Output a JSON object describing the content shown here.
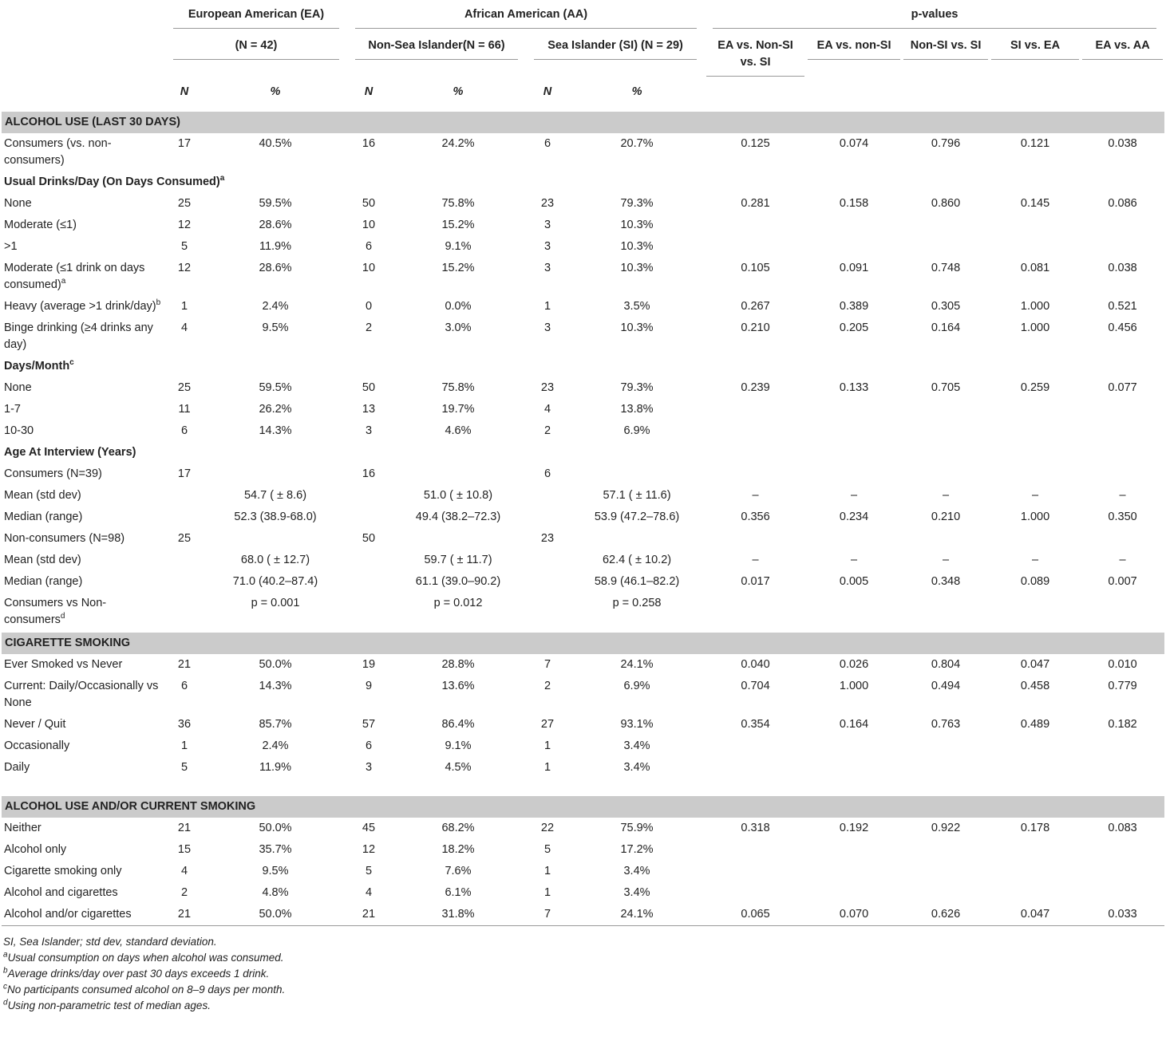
{
  "header": {
    "groups": [
      "European American (EA)",
      "African American (AA)",
      "p-values"
    ],
    "subgroups": [
      "(N = 42)",
      "Non-Sea Islander(N = 66)",
      "Sea Islander (SI) (N = 29)",
      "EA vs. Non-SI vs. SI",
      "EA vs. non-SI",
      "Non-SI vs. SI",
      "SI vs. EA",
      "EA vs. AA"
    ],
    "units": [
      "N",
      "%",
      "N",
      "%",
      "N",
      "%"
    ]
  },
  "sections": [
    {
      "title": "ALCOHOL USE (LAST 30 DAYS)",
      "rows": [
        {
          "label": "Consumers (vs. non-consumers)",
          "cells": [
            "17",
            "40.5%",
            "16",
            "24.2%",
            "6",
            "20.7%",
            "0.125",
            "0.074",
            "0.796",
            "0.121",
            "0.038"
          ]
        },
        {
          "label": "Usual Drinks/Day (On Days Consumed)",
          "sup": "a"
        },
        {
          "label": "None",
          "cells": [
            "25",
            "59.5%",
            "50",
            "75.8%",
            "23",
            "79.3%",
            "0.281",
            "0.158",
            "0.860",
            "0.145",
            "0.086"
          ]
        },
        {
          "label": "Moderate (≤1)",
          "cells": [
            "12",
            "28.6%",
            "10",
            "15.2%",
            "3",
            "10.3%",
            null,
            null,
            null,
            null,
            null
          ]
        },
        {
          "label": ">1",
          "cells": [
            "5",
            "11.9%",
            "6",
            "9.1%",
            "3",
            "10.3%",
            null,
            null,
            null,
            null,
            null
          ]
        },
        {
          "label": "Moderate (≤1 drink on days consumed)",
          "sup": "a",
          "cells": [
            "12",
            "28.6%",
            "10",
            "15.2%",
            "3",
            "10.3%",
            "0.105",
            "0.091",
            "0.748",
            "0.081",
            "0.038"
          ]
        },
        {
          "label": "Heavy (average >1 drink/day)",
          "sup": "b",
          "cells": [
            "1",
            "2.4%",
            "0",
            "0.0%",
            "1",
            "3.5%",
            "0.267",
            "0.389",
            "0.305",
            "1.000",
            "0.521"
          ]
        },
        {
          "label": "Binge drinking (≥4 drinks any day)",
          "cells": [
            "4",
            "9.5%",
            "2",
            "3.0%",
            "3",
            "10.3%",
            "0.210",
            "0.205",
            "0.164",
            "1.000",
            "0.456"
          ]
        },
        {
          "label": "Days/Month",
          "sup": "c"
        },
        {
          "label": "None",
          "cells": [
            "25",
            "59.5%",
            "50",
            "75.8%",
            "23",
            "79.3%",
            "0.239",
            "0.133",
            "0.705",
            "0.259",
            "0.077"
          ]
        },
        {
          "label": "1-7",
          "cells": [
            "11",
            "26.2%",
            "13",
            "19.7%",
            "4",
            "13.8%",
            null,
            null,
            null,
            null,
            null
          ]
        },
        {
          "label": "10-30",
          "cells": [
            "6",
            "14.3%",
            "3",
            "4.6%",
            "2",
            "6.9%",
            null,
            null,
            null,
            null,
            null
          ]
        },
        {
          "label": "Age At Interview (Years)"
        },
        {
          "label": "Consumers (N=39)",
          "cells": [
            "17",
            null,
            "16",
            null,
            "6",
            null,
            null,
            null,
            null,
            null,
            null
          ]
        },
        {
          "label": "Mean (std dev)",
          "cells": [
            null,
            "54.7 ( ± 8.6)",
            null,
            "51.0 ( ± 10.8)",
            null,
            "57.1 ( ± 11.6)",
            "–",
            "–",
            "–",
            "–",
            "–"
          ]
        },
        {
          "label": "Median (range)",
          "cells": [
            null,
            "52.3 (38.9-68.0)",
            null,
            "49.4 (38.2–72.3)",
            null,
            "53.9 (47.2–78.6)",
            "0.356",
            "0.234",
            "0.210",
            "1.000",
            "0.350"
          ]
        },
        {
          "label": "Non-consumers (N=98)",
          "cells": [
            "25",
            null,
            "50",
            null,
            "23",
            null,
            null,
            null,
            null,
            null,
            null
          ]
        },
        {
          "label": "Mean (std dev)",
          "cells": [
            null,
            "68.0 ( ± 12.7)",
            null,
            "59.7 ( ± 11.7)",
            null,
            "62.4 ( ± 10.2)",
            "–",
            "–",
            "–",
            "–",
            "–"
          ]
        },
        {
          "label": "Median (range)",
          "cells": [
            null,
            "71.0 (40.2–87.4)",
            null,
            "61.1 (39.0–90.2)",
            null,
            "58.9 (46.1–82.2)",
            "0.017",
            "0.005",
            "0.348",
            "0.089",
            "0.007"
          ]
        },
        {
          "label": "Consumers vs Non-consumers",
          "sup": "d",
          "cells": [
            null,
            "p = 0.001",
            null,
            "p = 0.012",
            null,
            "p = 0.258",
            null,
            null,
            null,
            null,
            null
          ]
        }
      ]
    },
    {
      "title": "CIGARETTE SMOKING",
      "rows": [
        {
          "label": "Ever Smoked vs Never",
          "cells": [
            "21",
            "50.0%",
            "19",
            "28.8%",
            "7",
            "24.1%",
            "0.040",
            "0.026",
            "0.804",
            "0.047",
            "0.010"
          ]
        },
        {
          "label": "Current: Daily/Occasionally vs None",
          "cells": [
            "6",
            "14.3%",
            "9",
            "13.6%",
            "2",
            "6.9%",
            "0.704",
            "1.000",
            "0.494",
            "0.458",
            "0.779"
          ]
        },
        {
          "label": "Never / Quit",
          "cells": [
            "36",
            "85.7%",
            "57",
            "86.4%",
            "27",
            "93.1%",
            "0.354",
            "0.164",
            "0.763",
            "0.489",
            "0.182"
          ]
        },
        {
          "label": "Occasionally",
          "cells": [
            "1",
            "2.4%",
            "6",
            "9.1%",
            "1",
            "3.4%",
            null,
            null,
            null,
            null,
            null
          ]
        },
        {
          "label": "Daily",
          "cells": [
            "5",
            "11.9%",
            "3",
            "4.5%",
            "1",
            "3.4%",
            null,
            null,
            null,
            null,
            null
          ]
        }
      ]
    },
    {
      "title": "ALCOHOL USE AND/OR CURRENT SMOKING",
      "rows": [
        {
          "label": "Neither",
          "cells": [
            "21",
            "50.0%",
            "45",
            "68.2%",
            "22",
            "75.9%",
            "0.318",
            "0.192",
            "0.922",
            "0.178",
            "0.083"
          ]
        },
        {
          "label": "Alcohol only",
          "cells": [
            "15",
            "35.7%",
            "12",
            "18.2%",
            "5",
            "17.2%",
            null,
            null,
            null,
            null,
            null
          ]
        },
        {
          "label": "Cigarette smoking only",
          "cells": [
            "4",
            "9.5%",
            "5",
            "7.6%",
            "1",
            "3.4%",
            null,
            null,
            null,
            null,
            null
          ]
        },
        {
          "label": "Alcohol and cigarettes",
          "cells": [
            "2",
            "4.8%",
            "4",
            "6.1%",
            "1",
            "3.4%",
            null,
            null,
            null,
            null,
            null
          ]
        },
        {
          "label": "Alcohol and/or cigarettes",
          "cells": [
            "21",
            "50.0%",
            "21",
            "31.8%",
            "7",
            "24.1%",
            "0.065",
            "0.070",
            "0.626",
            "0.047",
            "0.033"
          ]
        }
      ]
    }
  ],
  "notes": {
    "abbrev": "SI, Sea Islander; std dev, standard deviation.",
    "items": [
      {
        "mark": "a",
        "text": "Usual consumption on days when alcohol was consumed."
      },
      {
        "mark": "b",
        "text": "Average drinks/day over past 30 days exceeds 1 drink."
      },
      {
        "mark": "c",
        "text": "No participants consumed alcohol on 8–9 days per month."
      },
      {
        "mark": "d",
        "text": "Using non-parametric test of median ages."
      }
    ]
  }
}
